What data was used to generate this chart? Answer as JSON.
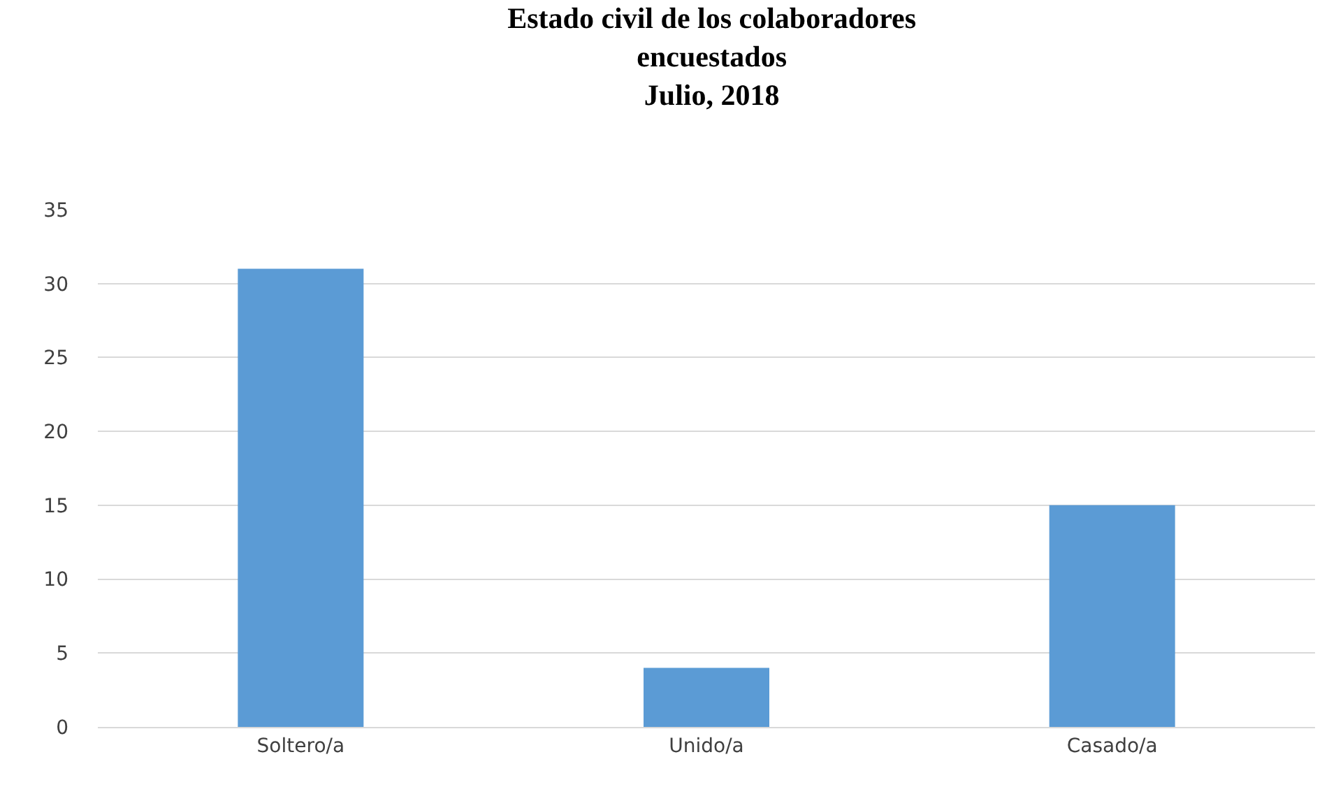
{
  "chart_data": {
    "type": "bar",
    "title": "Estado civil de los colaboradores\nencuestados\nJulio, 2018",
    "categories": [
      "Soltero/a",
      "Unido/a",
      "Casado/a"
    ],
    "values": [
      31,
      4,
      15
    ],
    "color": "#5b9bd5",
    "ylim": [
      0,
      35
    ],
    "yticks": [
      0,
      5,
      10,
      15,
      20,
      25,
      30,
      35
    ],
    "grid": "y",
    "legend": false
  }
}
